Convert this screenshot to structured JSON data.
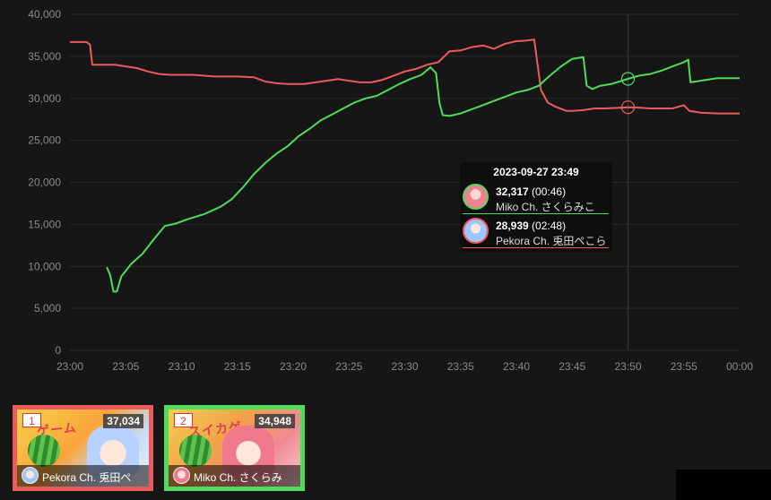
{
  "chart_data": {
    "type": "line",
    "x_ticks": [
      "23:00",
      "23:05",
      "23:10",
      "23:15",
      "23:20",
      "23:25",
      "23:30",
      "23:35",
      "23:40",
      "23:45",
      "23:50",
      "23:55",
      "00:00"
    ],
    "y_ticks": [
      "0",
      "5,000",
      "10,000",
      "15,000",
      "20,000",
      "25,000",
      "30,000",
      "35,000",
      "40,000"
    ],
    "ylim": [
      0,
      40000
    ],
    "xlim_minutes": [
      0,
      60
    ],
    "grid": true,
    "crosshair_minute": 50,
    "series": [
      {
        "name": "Pekora Ch. 兎田ぺこら",
        "color": "#ec5b5b",
        "points": [
          [
            0,
            36700
          ],
          [
            1.5,
            36700
          ],
          [
            1.8,
            36400
          ],
          [
            2,
            34000
          ],
          [
            4,
            34000
          ],
          [
            5,
            33800
          ],
          [
            6,
            33600
          ],
          [
            7,
            33200
          ],
          [
            8,
            32900
          ],
          [
            9,
            32800
          ],
          [
            11,
            32800
          ],
          [
            13,
            32600
          ],
          [
            15,
            32600
          ],
          [
            16.5,
            32500
          ],
          [
            17.5,
            32000
          ],
          [
            18.5,
            31800
          ],
          [
            19.5,
            31700
          ],
          [
            21,
            31700
          ],
          [
            22,
            31900
          ],
          [
            23,
            32100
          ],
          [
            24,
            32300
          ],
          [
            25,
            32100
          ],
          [
            26,
            31900
          ],
          [
            27,
            31900
          ],
          [
            28,
            32200
          ],
          [
            29,
            32700
          ],
          [
            30,
            33200
          ],
          [
            31,
            33500
          ],
          [
            32,
            34000
          ],
          [
            33,
            34300
          ],
          [
            34,
            35600
          ],
          [
            35,
            35700
          ],
          [
            36,
            36100
          ],
          [
            37,
            36300
          ],
          [
            38,
            35900
          ],
          [
            39,
            36500
          ],
          [
            40,
            36800
          ],
          [
            41,
            36900
          ],
          [
            41.6,
            37000
          ],
          [
            42.2,
            31000
          ],
          [
            42.8,
            29500
          ],
          [
            43.5,
            29000
          ],
          [
            44.5,
            28500
          ],
          [
            45,
            28500
          ],
          [
            46,
            28600
          ],
          [
            47,
            28800
          ],
          [
            48,
            28800
          ],
          [
            50,
            28939
          ],
          [
            51,
            28900
          ],
          [
            52,
            28800
          ],
          [
            53,
            28800
          ],
          [
            54,
            28800
          ],
          [
            55,
            29200
          ],
          [
            55.5,
            28500
          ],
          [
            56.5,
            28300
          ],
          [
            58,
            28200
          ],
          [
            60,
            28200
          ]
        ]
      },
      {
        "name": "Miko Ch. さくらみこ",
        "color": "#4fdc5a",
        "points": [
          [
            3.3,
            9900
          ],
          [
            3.6,
            9000
          ],
          [
            3.9,
            7000
          ],
          [
            4.2,
            7000
          ],
          [
            4.6,
            8800
          ],
          [
            5.5,
            10300
          ],
          [
            6.5,
            11500
          ],
          [
            7.5,
            13200
          ],
          [
            8.5,
            14800
          ],
          [
            9.5,
            15100
          ],
          [
            10.5,
            15600
          ],
          [
            12,
            16200
          ],
          [
            13.5,
            17100
          ],
          [
            14.5,
            18000
          ],
          [
            15.5,
            19400
          ],
          [
            16.5,
            21000
          ],
          [
            17.5,
            22300
          ],
          [
            18.5,
            23400
          ],
          [
            19.5,
            24300
          ],
          [
            20.5,
            25500
          ],
          [
            21.5,
            26400
          ],
          [
            22.5,
            27400
          ],
          [
            23.5,
            28100
          ],
          [
            24.5,
            28800
          ],
          [
            25.5,
            29500
          ],
          [
            26.5,
            30000
          ],
          [
            27.5,
            30300
          ],
          [
            28.5,
            31000
          ],
          [
            29.5,
            31700
          ],
          [
            30.5,
            32300
          ],
          [
            31.5,
            32800
          ],
          [
            32.3,
            33700
          ],
          [
            32.8,
            33000
          ],
          [
            33.1,
            29500
          ],
          [
            33.4,
            28000
          ],
          [
            34,
            27900
          ],
          [
            35,
            28200
          ],
          [
            36,
            28700
          ],
          [
            37,
            29200
          ],
          [
            38,
            29700
          ],
          [
            39,
            30200
          ],
          [
            40,
            30700
          ],
          [
            41,
            31000
          ],
          [
            42,
            31500
          ],
          [
            43,
            32700
          ],
          [
            44,
            33800
          ],
          [
            45,
            34700
          ],
          [
            46,
            34900
          ],
          [
            46.3,
            31500
          ],
          [
            46.8,
            31100
          ],
          [
            47.5,
            31500
          ],
          [
            48.5,
            31700
          ],
          [
            50,
            32317
          ],
          [
            51,
            32700
          ],
          [
            52,
            32900
          ],
          [
            53,
            33300
          ],
          [
            54,
            33800
          ],
          [
            55,
            34300
          ],
          [
            55.4,
            34600
          ],
          [
            55.6,
            31900
          ],
          [
            56.5,
            32100
          ],
          [
            58,
            32400
          ],
          [
            60,
            32400
          ]
        ]
      }
    ]
  },
  "tooltip": {
    "title": "2023-09-27 23:49",
    "rows": [
      {
        "value": "32,317",
        "delta": "(00:46)",
        "name": "Miko Ch. さくらみこ"
      },
      {
        "value": "28,939",
        "delta": "(02:48)",
        "name": "Pekora Ch. 兎田ぺこら"
      }
    ]
  },
  "cards": [
    {
      "rank": "1",
      "count": "37,034",
      "name": "Pekora Ch. 兎田ぺ",
      "art_text": "ゲーム"
    },
    {
      "rank": "2",
      "count": "34,948",
      "name": "Miko Ch. さくらみ",
      "art_text": "スイカゲ"
    }
  ]
}
